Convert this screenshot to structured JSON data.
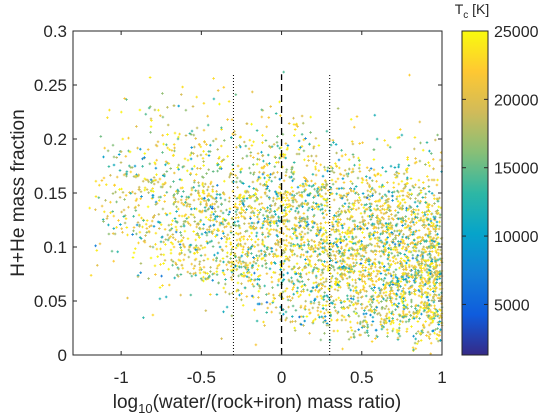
{
  "chart_data": {
    "type": "scatter",
    "xlabel_main": "log",
    "xlabel_sub": "10",
    "xlabel_rest": "(water/(rock+iron) mass ratio)",
    "ylabel": "H+He mass fraction",
    "xlim": [
      -1.3,
      1.0
    ],
    "ylim": [
      0,
      0.3
    ],
    "x_ticks": [
      -1,
      -0.5,
      0,
      0.5,
      1
    ],
    "x_tick_labels": [
      "-1",
      "-0.5",
      "0",
      "0.5",
      "1"
    ],
    "y_ticks": [
      0,
      0.05,
      0.1,
      0.15,
      0.2,
      0.25,
      0.3
    ],
    "y_tick_labels": [
      "0",
      "0.05",
      "0.1",
      "0.15",
      "0.2",
      "0.25",
      "0.3"
    ],
    "reference_lines": [
      {
        "x": 0,
        "style": "dashed"
      },
      {
        "x": -0.3,
        "style": "dotted"
      },
      {
        "x": 0.3,
        "style": "dotted"
      }
    ],
    "reference_line_yrange": [
      0,
      0.26
    ],
    "colorbar": {
      "title_main": "T",
      "title_sub": "c",
      "title_rest": " [K]",
      "range": [
        1300,
        25000
      ],
      "ticks": [
        5000,
        10000,
        15000,
        20000,
        25000
      ],
      "tick_labels": [
        "5000",
        "10000",
        "15000",
        "20000",
        "25000"
      ],
      "colormap": [
        "#352a87",
        "#0f5cdd",
        "#1481d6",
        "#06a4ca",
        "#2eb7a4",
        "#87bf77",
        "#d1bb59",
        "#fec832",
        "#f9fb0e"
      ]
    },
    "scatter_summary": {
      "n_points": 4200,
      "x_range": [
        -1.2,
        1.0
      ],
      "y_range": [
        0.0,
        0.265
      ],
      "y_mean_at_x_-1": 0.15,
      "y_mean_at_x_1": 0.08,
      "y_spread": 0.045,
      "density_peak_x": 0.4,
      "marker": "plus",
      "marker_color_by": "Tc"
    }
  }
}
